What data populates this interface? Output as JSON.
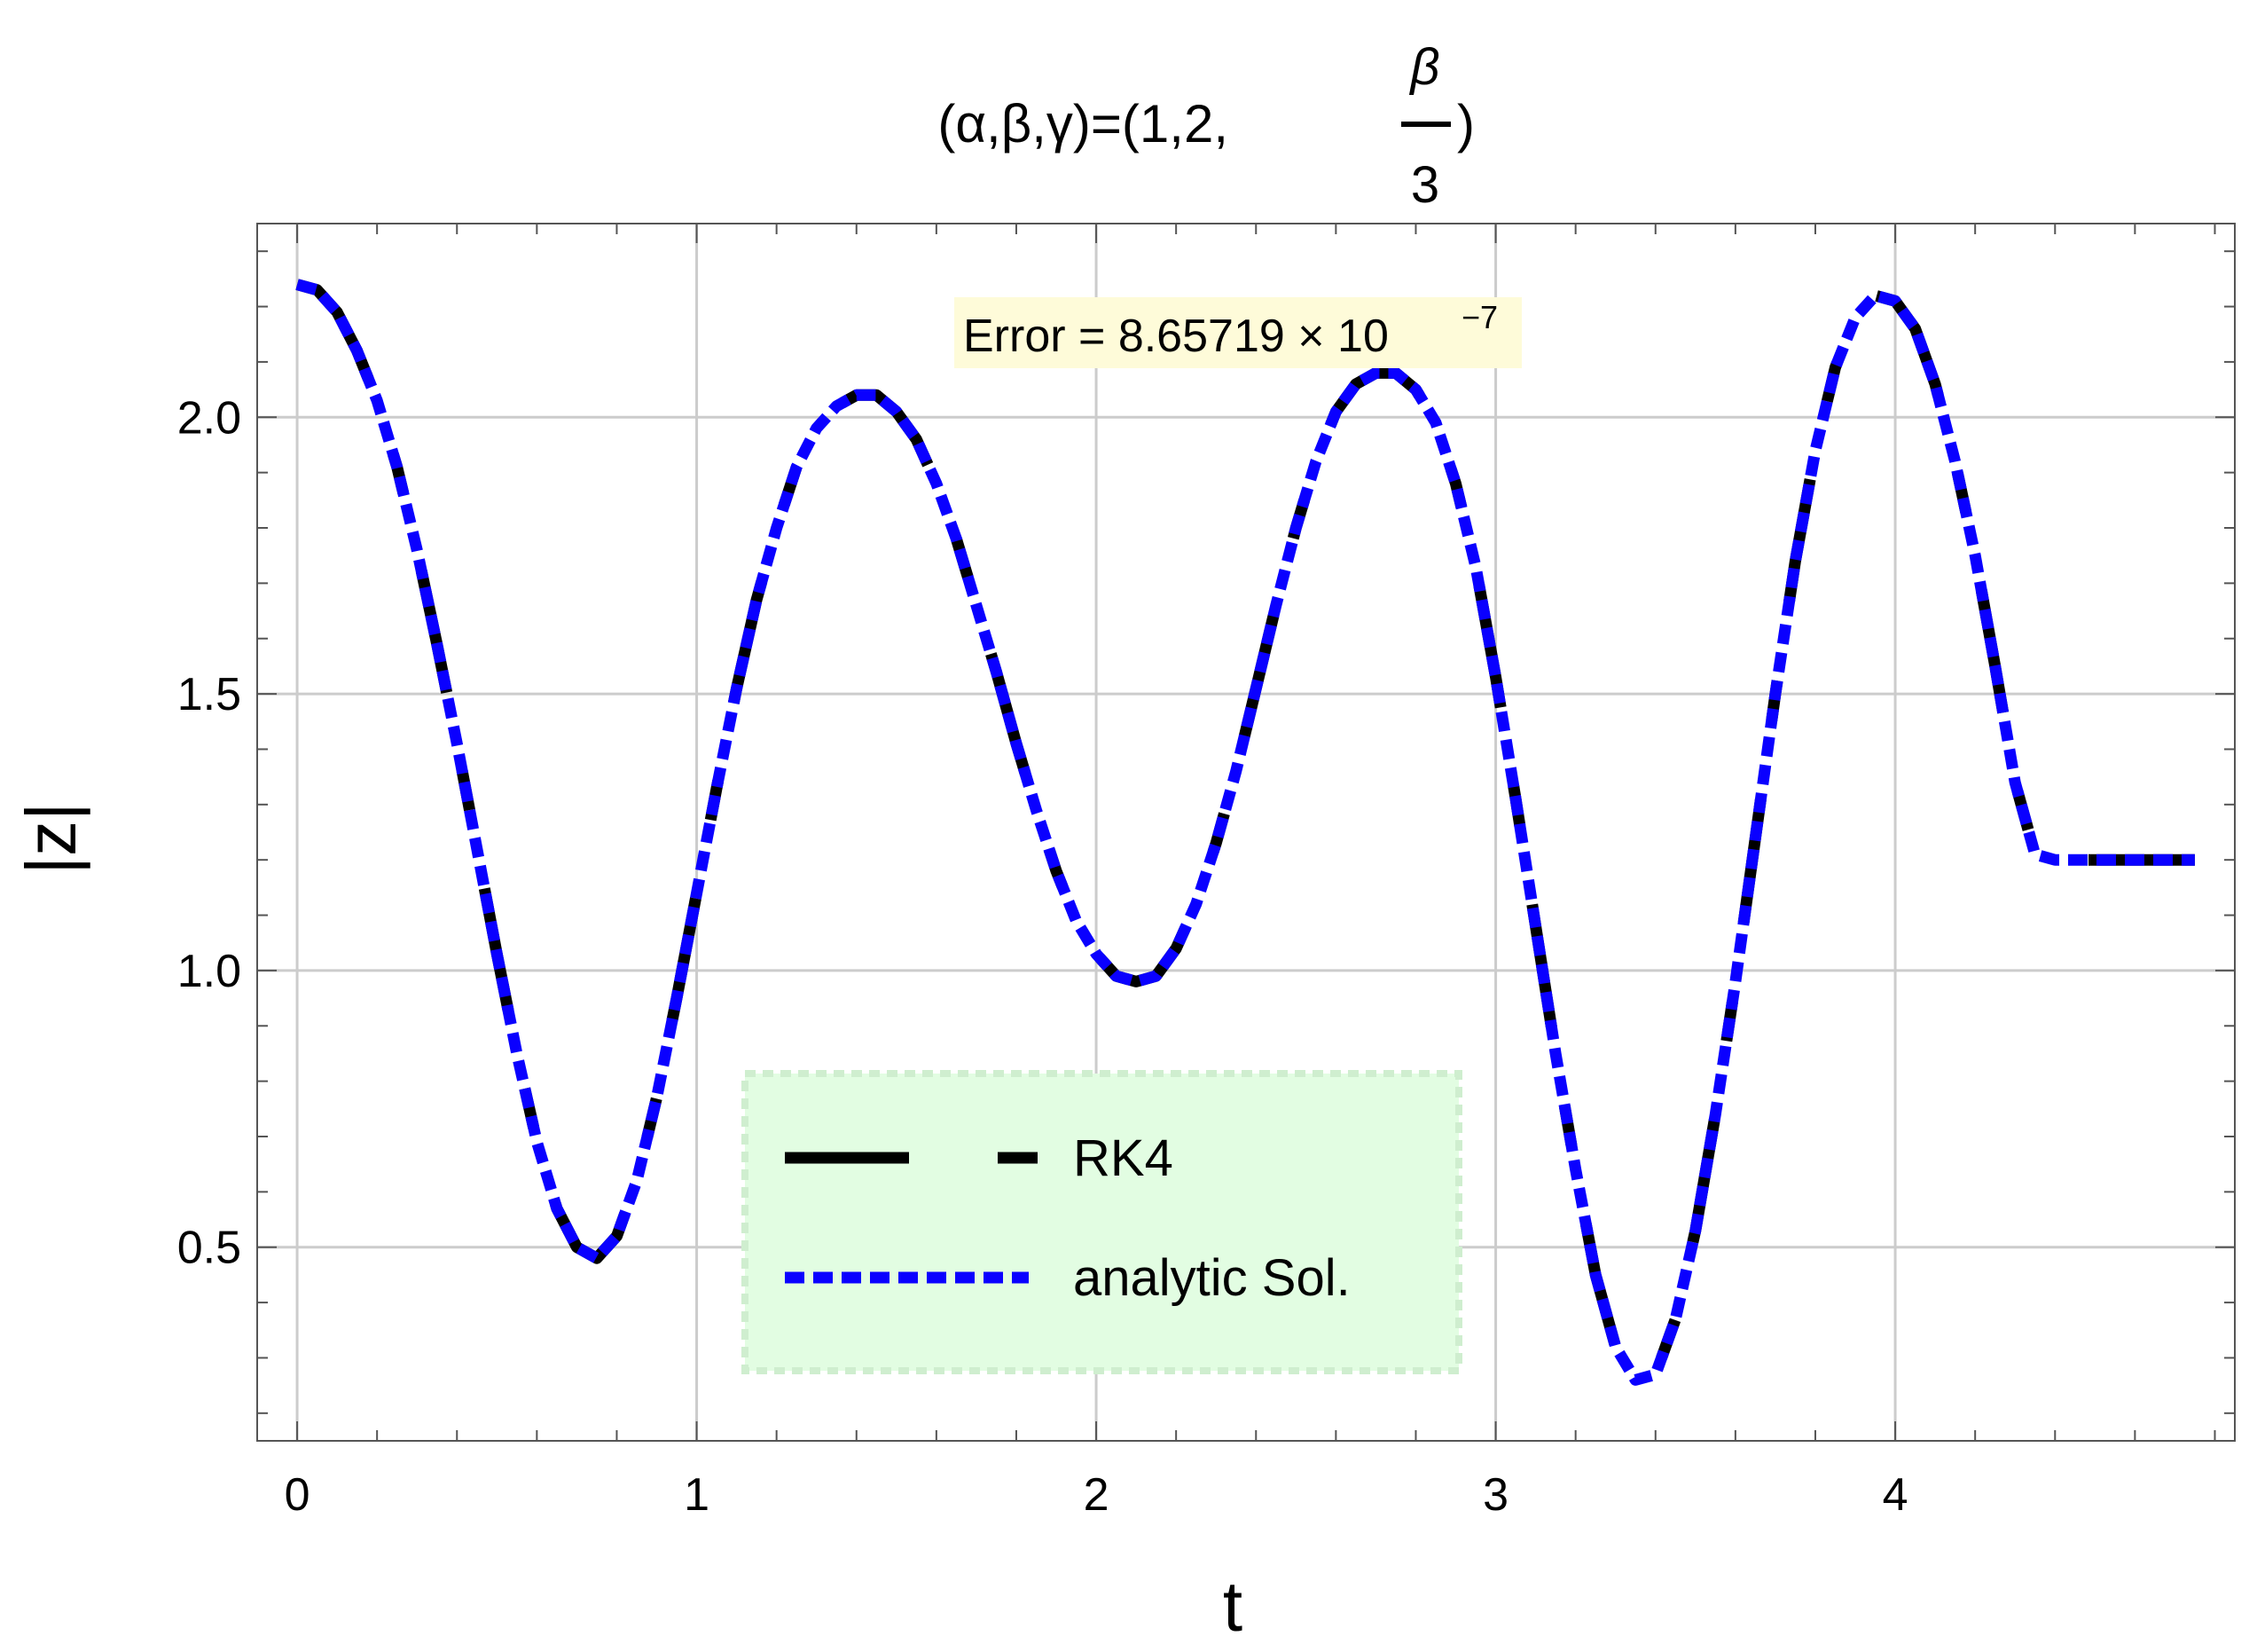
{
  "chart_data": {
    "type": "line",
    "title": {
      "prefix": "(α,β,γ)=(1,2,",
      "frac_num": "β",
      "frac_den": "3",
      "suffix": ")"
    },
    "xlabel": "t",
    "ylabel": "|z|",
    "xlim": [
      -0.1,
      4.85
    ],
    "ylim": [
      0.15,
      2.35
    ],
    "xticks": [
      0,
      1,
      2,
      3,
      4
    ],
    "xtick_labels": [
      "0",
      "1",
      "2",
      "3",
      "4"
    ],
    "yticks": [
      0.5,
      1.0,
      1.5,
      2.0
    ],
    "ytick_labels": [
      "0.5",
      "1.0",
      "1.5",
      "2.0"
    ],
    "grid": true,
    "legend_position": "bottom-center",
    "legend_background": "#e2fde2",
    "annotation": {
      "text": "Error = 8.65719 × 10",
      "exponent": "−7",
      "background": "#fefbd9",
      "at": {
        "x": 2.02,
        "y": 2.14
      }
    },
    "series": [
      {
        "name": "RK4",
        "color": "#000000",
        "style": "long-dash",
        "x": [
          0.0,
          0.05,
          0.1,
          0.15,
          0.2,
          0.25,
          0.3,
          0.35,
          0.4,
          0.45,
          0.5,
          0.55,
          0.6,
          0.65,
          0.7,
          0.75,
          0.8,
          0.85,
          0.9,
          0.95,
          1.0,
          1.05,
          1.1,
          1.15,
          1.2,
          1.25,
          1.3,
          1.35,
          1.4,
          1.45,
          1.5,
          1.55,
          1.6,
          1.65,
          1.7,
          1.75,
          1.8,
          1.85,
          1.9,
          1.95,
          2.0,
          2.05,
          2.1,
          2.15,
          2.2,
          2.25,
          2.3,
          2.35,
          2.4,
          2.45,
          2.5,
          2.55,
          2.6,
          2.65,
          2.7,
          2.75,
          2.8,
          2.85,
          2.9,
          2.95,
          3.0,
          3.05,
          3.1,
          3.15,
          3.2,
          3.25,
          3.3,
          3.35,
          3.4,
          3.45,
          3.5,
          3.55,
          3.6,
          3.65,
          3.7,
          3.75,
          3.8,
          3.85,
          3.9,
          3.95,
          4.0,
          4.05,
          4.1,
          4.15,
          4.2,
          4.25,
          4.3,
          4.35,
          4.4,
          4.45,
          4.5,
          4.55,
          4.6,
          4.65,
          4.7,
          4.75
        ],
        "y": [
          2.24,
          2.23,
          2.19,
          2.12,
          2.03,
          1.91,
          1.76,
          1.59,
          1.41,
          1.22,
          1.03,
          0.85,
          0.69,
          0.57,
          0.5,
          0.48,
          0.52,
          0.62,
          0.77,
          0.95,
          1.14,
          1.33,
          1.51,
          1.67,
          1.8,
          1.91,
          1.98,
          2.02,
          2.04,
          2.04,
          2.01,
          1.96,
          1.88,
          1.78,
          1.66,
          1.54,
          1.41,
          1.29,
          1.18,
          1.09,
          1.03,
          0.99,
          0.98,
          0.99,
          1.04,
          1.12,
          1.23,
          1.36,
          1.51,
          1.66,
          1.8,
          1.92,
          2.01,
          2.06,
          2.08,
          2.08,
          2.05,
          1.99,
          1.88,
          1.73,
          1.53,
          1.31,
          1.08,
          0.85,
          0.64,
          0.45,
          0.32,
          0.26,
          0.27,
          0.37,
          0.53,
          0.74,
          0.98,
          1.24,
          1.5,
          1.74,
          1.94,
          2.09,
          2.18,
          2.22,
          2.21,
          2.16,
          2.06,
          1.92,
          1.75,
          1.55,
          1.34,
          1.21,
          1.2,
          1.2,
          1.2,
          1.2,
          1.2,
          1.2,
          1.2,
          1.2
        ]
      },
      {
        "name": "analytic Sol.",
        "color": "#0a00ff",
        "style": "dotted",
        "x": [
          0.0,
          0.05,
          0.1,
          0.15,
          0.2,
          0.25,
          0.3,
          0.35,
          0.4,
          0.45,
          0.5,
          0.55,
          0.6,
          0.65,
          0.7,
          0.75,
          0.8,
          0.85,
          0.9,
          0.95,
          1.0,
          1.05,
          1.1,
          1.15,
          1.2,
          1.25,
          1.3,
          1.35,
          1.4,
          1.45,
          1.5,
          1.55,
          1.6,
          1.65,
          1.7,
          1.75,
          1.8,
          1.85,
          1.9,
          1.95,
          2.0,
          2.05,
          2.1,
          2.15,
          2.2,
          2.25,
          2.3,
          2.35,
          2.4,
          2.45,
          2.5,
          2.55,
          2.6,
          2.65,
          2.7,
          2.75,
          2.8,
          2.85,
          2.9,
          2.95,
          3.0,
          3.05,
          3.1,
          3.15,
          3.2,
          3.25,
          3.3,
          3.35,
          3.4,
          3.45,
          3.5,
          3.55,
          3.6,
          3.65,
          3.7,
          3.75,
          3.8,
          3.85,
          3.9,
          3.95,
          4.0,
          4.05,
          4.1,
          4.15,
          4.2,
          4.25,
          4.3,
          4.35,
          4.4,
          4.45,
          4.5,
          4.55,
          4.6,
          4.65,
          4.7,
          4.75
        ],
        "y": [
          2.24,
          2.23,
          2.19,
          2.12,
          2.03,
          1.91,
          1.76,
          1.59,
          1.41,
          1.22,
          1.03,
          0.85,
          0.69,
          0.57,
          0.5,
          0.48,
          0.52,
          0.62,
          0.77,
          0.95,
          1.14,
          1.33,
          1.51,
          1.67,
          1.8,
          1.91,
          1.98,
          2.02,
          2.04,
          2.04,
          2.01,
          1.96,
          1.88,
          1.78,
          1.66,
          1.54,
          1.41,
          1.29,
          1.18,
          1.09,
          1.03,
          0.99,
          0.98,
          0.99,
          1.04,
          1.12,
          1.23,
          1.36,
          1.51,
          1.66,
          1.8,
          1.92,
          2.01,
          2.06,
          2.08,
          2.08,
          2.05,
          1.99,
          1.88,
          1.73,
          1.53,
          1.31,
          1.08,
          0.85,
          0.64,
          0.45,
          0.32,
          0.26,
          0.27,
          0.37,
          0.53,
          0.74,
          0.98,
          1.24,
          1.5,
          1.74,
          1.94,
          2.09,
          2.18,
          2.22,
          2.21,
          2.16,
          2.06,
          1.92,
          1.75,
          1.55,
          1.34,
          1.21,
          1.2,
          1.2,
          1.2,
          1.2,
          1.2,
          1.2,
          1.2,
          1.2
        ]
      }
    ]
  }
}
